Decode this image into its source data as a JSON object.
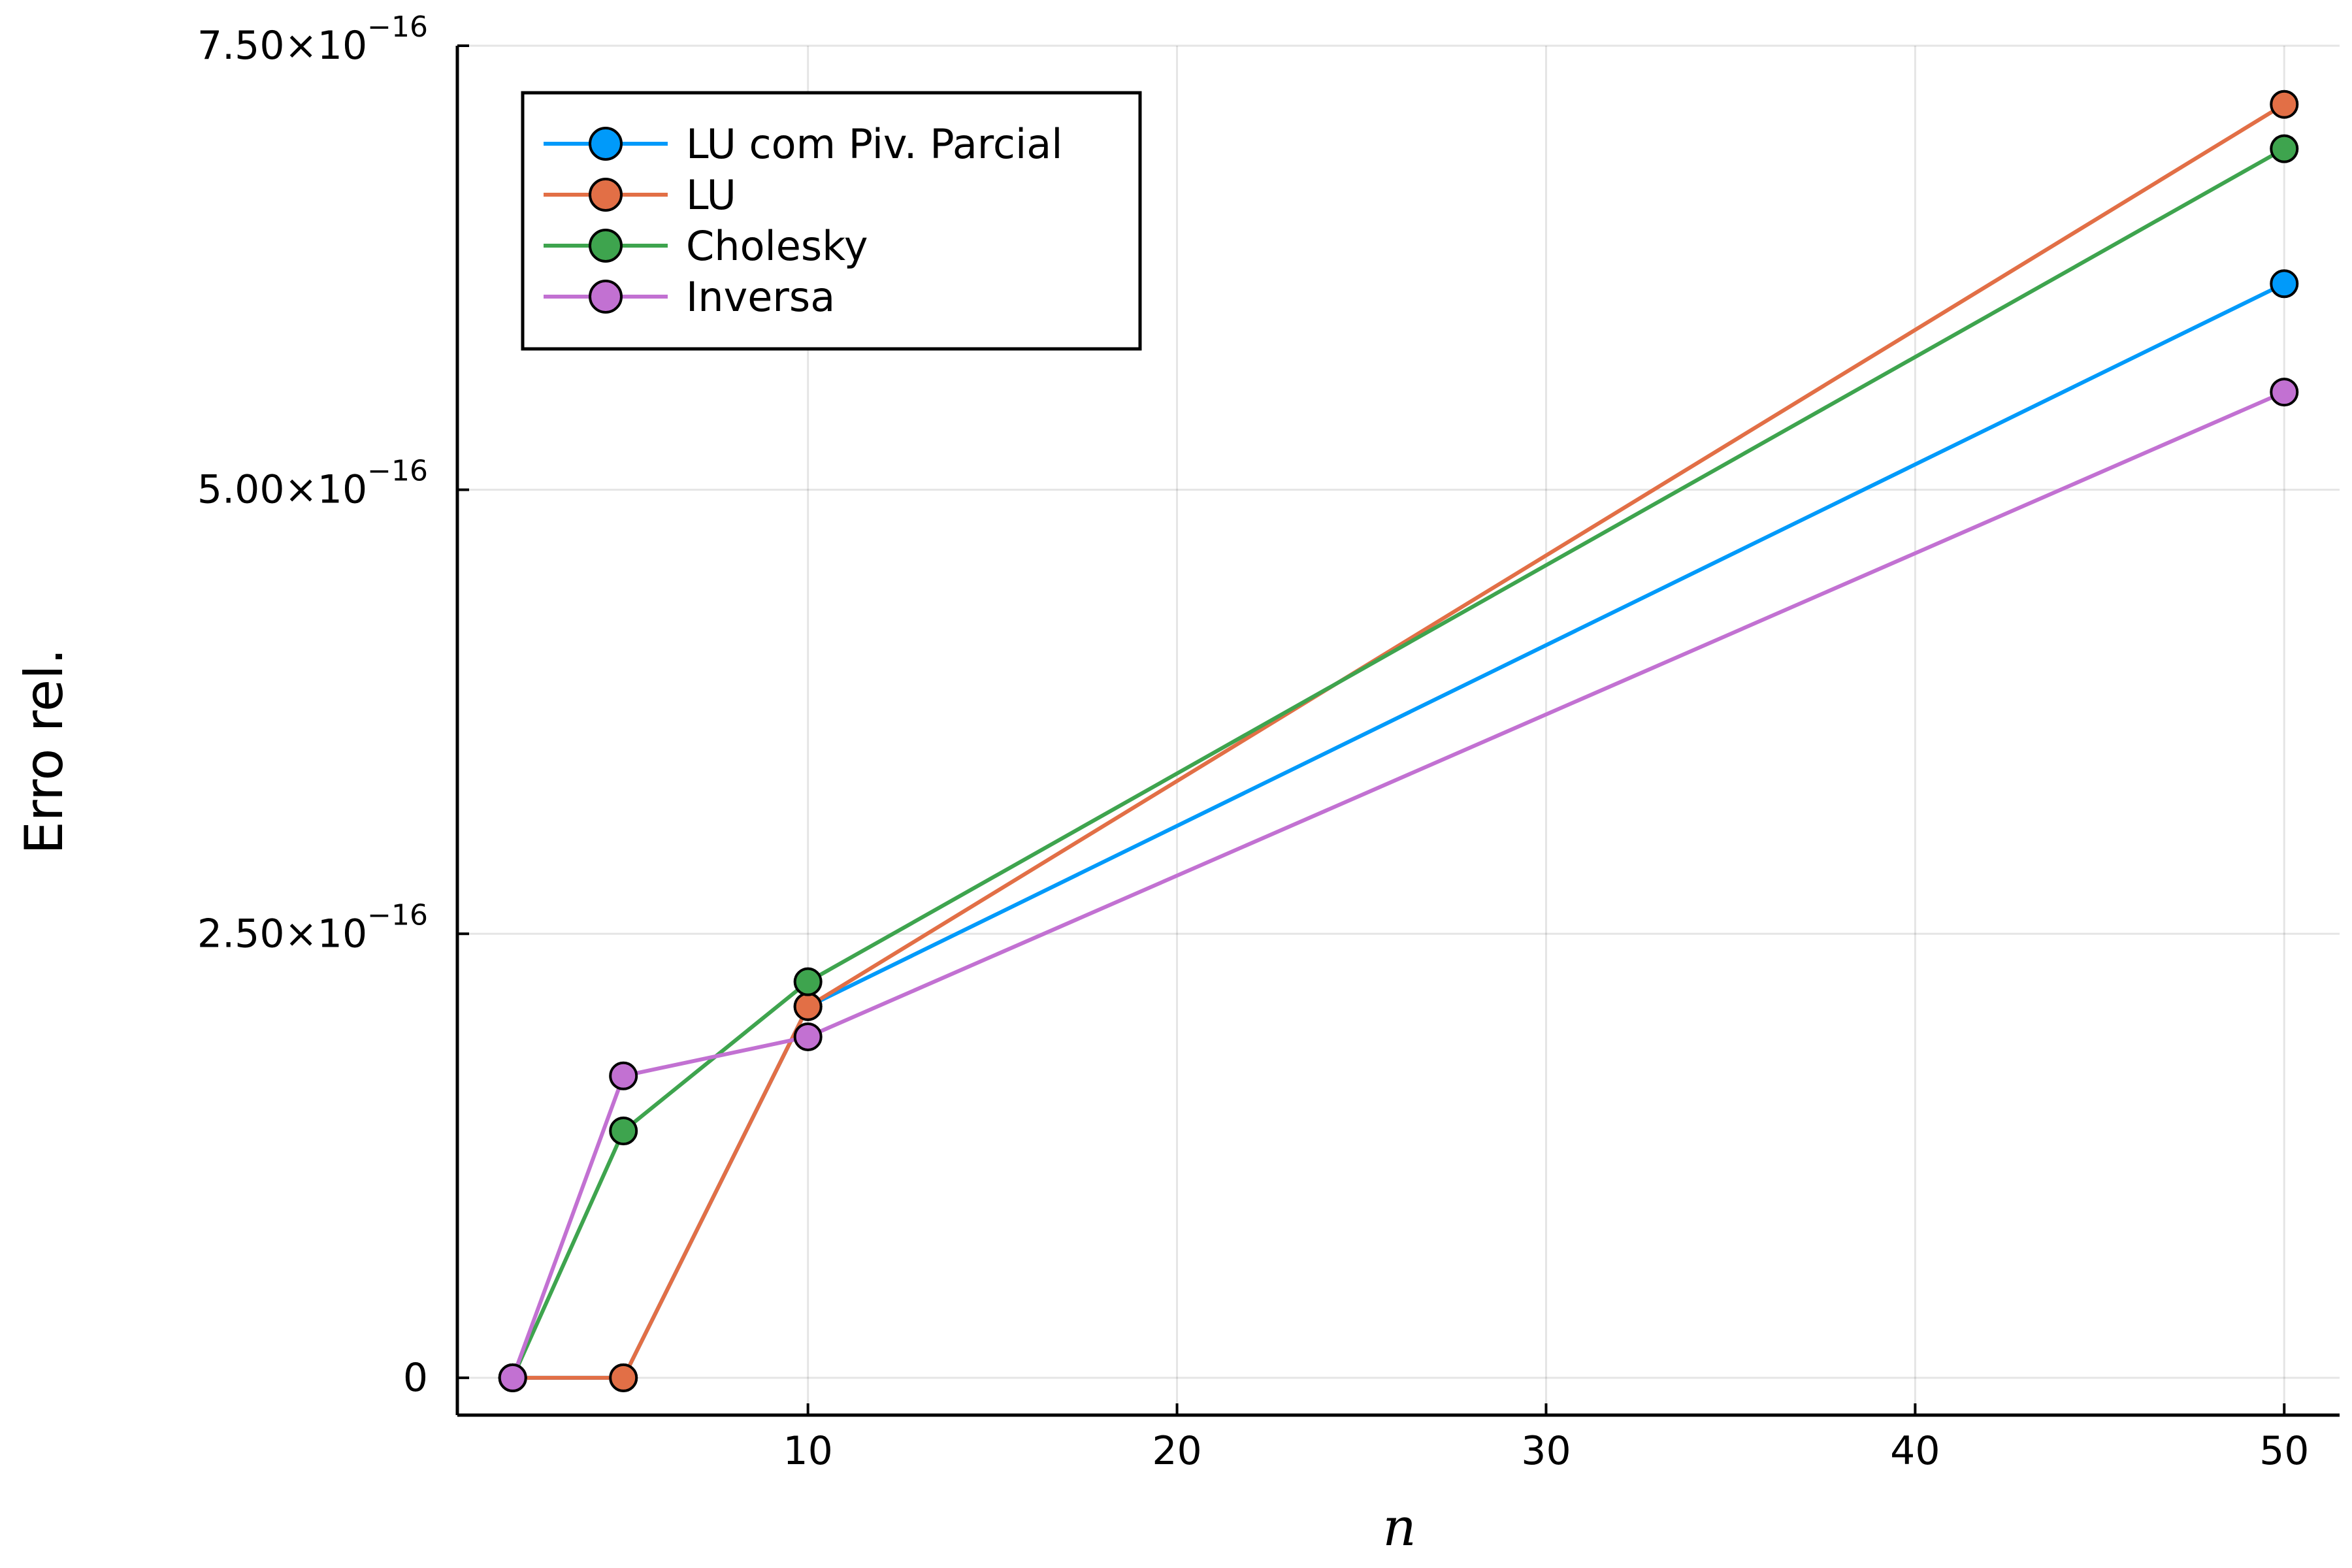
{
  "chart_data": {
    "type": "line",
    "xlabel": "n",
    "ylabel": "Erro rel.",
    "xlim": [
      0.5,
      51.5
    ],
    "ylim": [
      -2.1e-17,
      7.5e-16
    ],
    "xticks": [
      10,
      20,
      30,
      40,
      50
    ],
    "xtick_labels": [
      "10",
      "20",
      "30",
      "40",
      "50"
    ],
    "yticks": [
      0,
      2.5e-16,
      5e-16,
      7.5e-16
    ],
    "ytick_labels": [
      {
        "base": "0",
        "exp": ""
      },
      {
        "base": "2.50×10",
        "exp": "−16"
      },
      {
        "base": "5.00×10",
        "exp": "−16"
      },
      {
        "base": "7.50×10",
        "exp": "−16"
      }
    ],
    "grid": true,
    "legend_position": "top-left",
    "x": [
      2,
      5,
      10,
      50
    ],
    "series": [
      {
        "name": "LU com Piv. Parcial",
        "color": "#009AFA",
        "values": [
          0,
          0,
          2.09e-16,
          6.16e-16
        ]
      },
      {
        "name": "LU",
        "color": "#E26F46",
        "values": [
          0,
          0,
          2.09e-16,
          7.17e-16
        ]
      },
      {
        "name": "Cholesky",
        "color": "#3EA44E",
        "values": [
          0,
          1.39e-16,
          2.23e-16,
          6.92e-16
        ]
      },
      {
        "name": "Inversa",
        "color": "#C271D2",
        "values": [
          0,
          1.7e-16,
          1.92e-16,
          5.55e-16
        ]
      }
    ]
  }
}
